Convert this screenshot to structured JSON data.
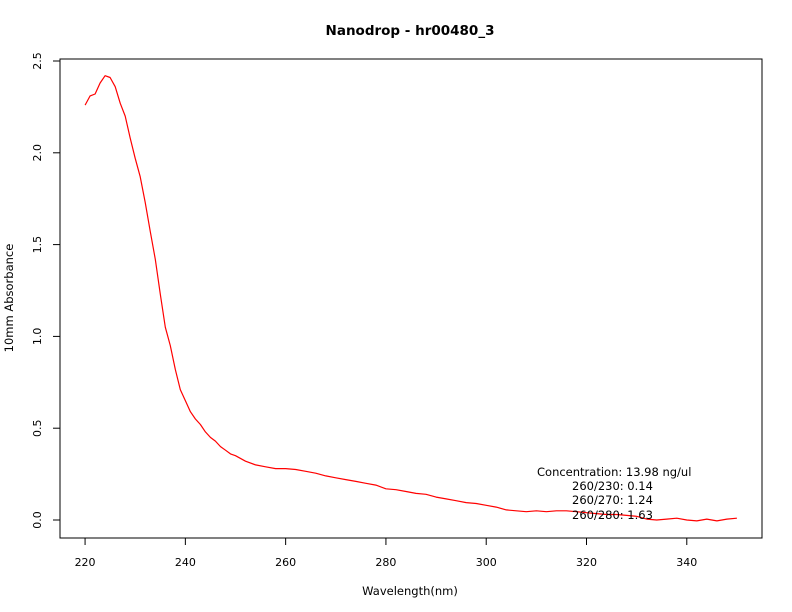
{
  "chart_data": {
    "type": "line",
    "title": "Nanodrop - hr00480_3",
    "xlabel": "Wavelength(nm)",
    "ylabel": "10mm Absorbance",
    "xlim": [
      215,
      355
    ],
    "ylim": [
      -0.1,
      2.5
    ],
    "x_ticks": [
      "220",
      "240",
      "260",
      "280",
      "300",
      "320",
      "340"
    ],
    "y_ticks": [
      "0.0",
      "0.5",
      "1.0",
      "1.5",
      "2.0",
      "2.5"
    ],
    "grid": false,
    "series": [
      {
        "color": "#ff0000",
        "points": [
          [
            220,
            2.26
          ],
          [
            221,
            2.31
          ],
          [
            222,
            2.32
          ],
          [
            223,
            2.38
          ],
          [
            224,
            2.42
          ],
          [
            225,
            2.41
          ],
          [
            226,
            2.36
          ],
          [
            227,
            2.27
          ],
          [
            228,
            2.2
          ],
          [
            229,
            2.08
          ],
          [
            230,
            1.97
          ],
          [
            231,
            1.87
          ],
          [
            232,
            1.73
          ],
          [
            233,
            1.57
          ],
          [
            234,
            1.42
          ],
          [
            235,
            1.23
          ],
          [
            236,
            1.05
          ],
          [
            237,
            0.95
          ],
          [
            238,
            0.82
          ],
          [
            239,
            0.71
          ],
          [
            240,
            0.65
          ],
          [
            241,
            0.59
          ],
          [
            242,
            0.55
          ],
          [
            243,
            0.52
          ],
          [
            244,
            0.48
          ],
          [
            245,
            0.45
          ],
          [
            246,
            0.43
          ],
          [
            247,
            0.4
          ],
          [
            248,
            0.38
          ],
          [
            249,
            0.36
          ],
          [
            250,
            0.35
          ],
          [
            252,
            0.32
          ],
          [
            254,
            0.3
          ],
          [
            256,
            0.29
          ],
          [
            258,
            0.28
          ],
          [
            260,
            0.28
          ],
          [
            262,
            0.275
          ],
          [
            264,
            0.265
          ],
          [
            266,
            0.255
          ],
          [
            268,
            0.24
          ],
          [
            270,
            0.23
          ],
          [
            272,
            0.22
          ],
          [
            274,
            0.21
          ],
          [
            276,
            0.2
          ],
          [
            278,
            0.19
          ],
          [
            280,
            0.17
          ],
          [
            282,
            0.165
          ],
          [
            284,
            0.155
          ],
          [
            286,
            0.145
          ],
          [
            288,
            0.14
          ],
          [
            290,
            0.125
          ],
          [
            292,
            0.115
          ],
          [
            294,
            0.105
          ],
          [
            296,
            0.095
          ],
          [
            298,
            0.09
          ],
          [
            300,
            0.08
          ],
          [
            302,
            0.07
          ],
          [
            304,
            0.055
          ],
          [
            306,
            0.05
          ],
          [
            308,
            0.045
          ],
          [
            310,
            0.05
          ],
          [
            312,
            0.045
          ],
          [
            314,
            0.05
          ],
          [
            316,
            0.05
          ],
          [
            318,
            0.045
          ],
          [
            320,
            0.04
          ],
          [
            322,
            0.035
          ],
          [
            324,
            0.03
          ],
          [
            326,
            0.03
          ],
          [
            328,
            0.025
          ],
          [
            330,
            0.02
          ],
          [
            332,
            0.005
          ],
          [
            334,
            0.0
          ],
          [
            336,
            0.005
          ],
          [
            338,
            0.01
          ],
          [
            340,
            0.0
          ],
          [
            342,
            -0.005
          ],
          [
            344,
            0.005
          ],
          [
            346,
            -0.005
          ],
          [
            348,
            0.005
          ],
          [
            350,
            0.01
          ]
        ]
      }
    ],
    "annotations": [
      "Concentration: 13.98 ng/ul",
      "260/230: 0.14",
      "260/270: 1.24",
      "260/280: 1.63"
    ]
  }
}
